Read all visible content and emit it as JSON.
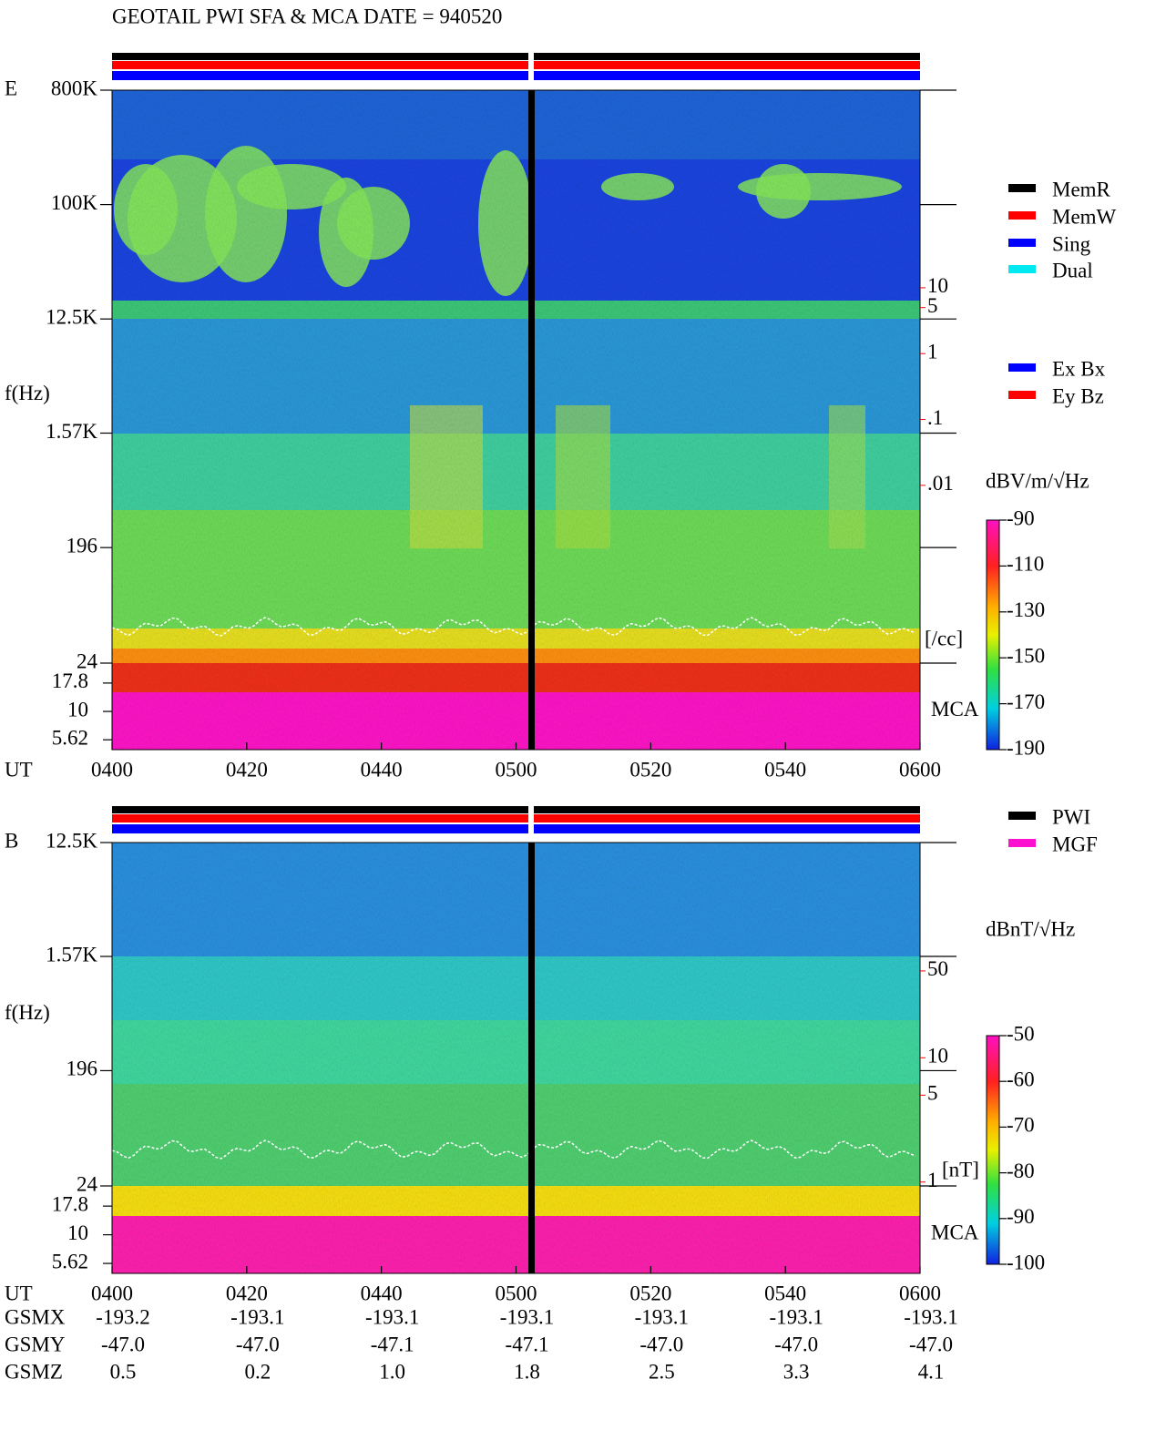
{
  "title": "GEOTAIL  PWI SFA & MCA   DATE = 940520",
  "chart_data": [
    {
      "type": "spectrogram",
      "panel_label": "E",
      "ylabel": "f(Hz)",
      "xlabel": "UT",
      "log_y": true,
      "categories": [
        "0400",
        "0420",
        "0440",
        "0500",
        "0520",
        "0540",
        "0600"
      ],
      "ylim": [
        24,
        800000
      ],
      "yticks": [
        {
          "value": 800000,
          "label": "800K"
        },
        {
          "value": 100000,
          "label": "100K"
        },
        {
          "value": 12500,
          "label": "12.5K"
        },
        {
          "value": 1570,
          "label": "1.57K"
        },
        196,
        24
      ],
      "mca_label": "MCA",
      "mca_ylim": [
        4.6,
        26.7
      ],
      "mca_yticks": [
        17.8,
        10,
        5.62
      ],
      "y2label": "[/cc]",
      "y2lim": [
        2e-05,
        10000
      ],
      "y2ticks": [
        10,
        5,
        1,
        {
          "value": 0.1,
          "label": ".1"
        },
        {
          "value": 0.01,
          "label": ".01"
        }
      ],
      "colorbar": {
        "label": "dBV/m/√Hz",
        "lim": [
          -190,
          -90
        ],
        "ticks": [
          -90,
          -110,
          -130,
          -150,
          -170,
          -190
        ]
      },
      "legend": [
        {
          "name": "MemR",
          "color": "#000000"
        },
        {
          "name": "MemW",
          "color": "#ff0000"
        },
        {
          "name": "Sing",
          "color": "#0000ff"
        },
        {
          "name": "Dual",
          "color": "#00e8f0"
        }
      ],
      "legend2": [
        {
          "name": "Ex Bx",
          "color": "#0000ff"
        },
        {
          "name": "Ey Bz",
          "color": "#ff0000"
        }
      ]
    },
    {
      "type": "spectrogram",
      "panel_label": "B",
      "ylabel": "f(Hz)",
      "xlabel": "UT",
      "log_y": true,
      "categories": [
        "0400",
        "0420",
        "0440",
        "0500",
        "0520",
        "0540",
        "0600"
      ],
      "ylim": [
        24,
        12500
      ],
      "yticks": [
        {
          "value": 12500,
          "label": "12.5K"
        },
        {
          "value": 1570,
          "label": "1.57K"
        },
        196,
        24
      ],
      "mca_label": "MCA",
      "mca_ylim": [
        4.6,
        26.7
      ],
      "mca_yticks": [
        17.8,
        10,
        5.62
      ],
      "y2label": "[nT]",
      "y2lim": [
        0.93,
        540
      ],
      "y2ticks": [
        50,
        10,
        5,
        1
      ],
      "colorbar": {
        "label": "dBnT/√Hz",
        "lim": [
          -100,
          -50
        ],
        "ticks": [
          -50,
          -60,
          -70,
          -80,
          -90,
          -100
        ]
      },
      "legend": [
        {
          "name": "PWI",
          "color": "#000000"
        },
        {
          "name": "MGF",
          "color": "#ff10d0"
        }
      ]
    }
  ],
  "orbit": {
    "rows": [
      {
        "name": "GSMX",
        "values": [
          "-193.2",
          "-193.1",
          "-193.1",
          "-193.1",
          "-193.1",
          "-193.1",
          "-193.1"
        ]
      },
      {
        "name": "GSMY",
        "values": [
          "-47.0",
          "-47.0",
          "-47.1",
          "-47.1",
          "-47.0",
          "-47.0",
          "-47.0"
        ]
      },
      {
        "name": "GSMZ",
        "values": [
          "0.5",
          "0.2",
          "1.0",
          "1.8",
          "2.5",
          "3.3",
          "4.1"
        ]
      }
    ]
  }
}
